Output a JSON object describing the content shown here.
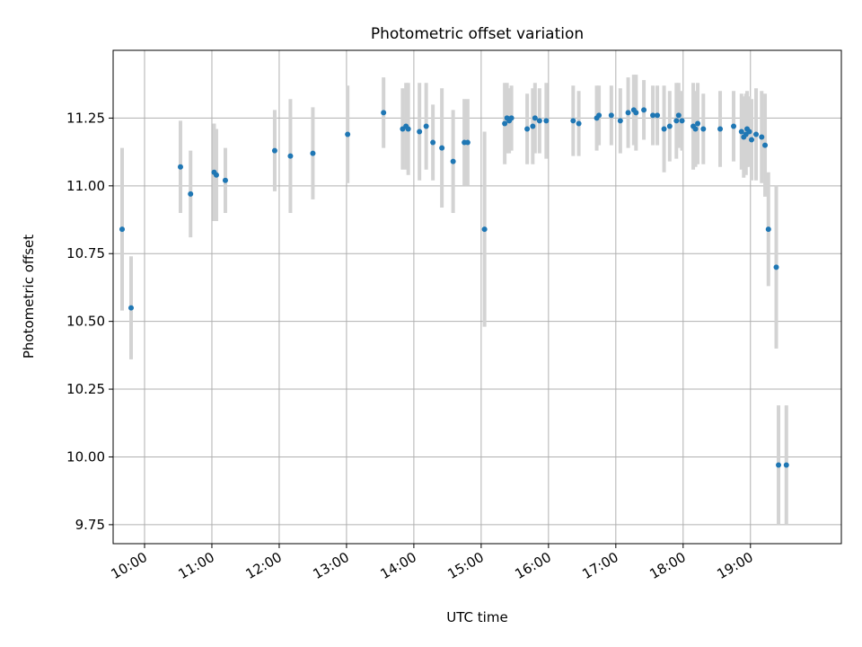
{
  "chart_data": {
    "type": "scatter",
    "title": "Photometric offset variation",
    "xlabel": "UTC time",
    "ylabel": "Photometric offset",
    "x_unit": "UTC time (HH:MM)",
    "xlim": [
      "09:32",
      "20:21"
    ],
    "ylim": [
      9.68,
      11.5
    ],
    "x_ticks": [
      "10:00",
      "11:00",
      "12:00",
      "13:00",
      "14:00",
      "15:00",
      "16:00",
      "17:00",
      "18:00",
      "19:00"
    ],
    "y_ticks": [
      "9.75",
      "10.00",
      "10.25",
      "10.50",
      "10.75",
      "11.00",
      "11.25"
    ],
    "grid": true,
    "colors": {
      "point": "#1f77b4",
      "errorbar": "#d3d3d3",
      "grid": "#b0b0b0"
    },
    "series": [
      {
        "x": [
          "09:40",
          "09:48",
          "10:32",
          "10:41",
          "11:02",
          "11:04",
          "11:12",
          "11:56",
          "12:10",
          "12:30",
          "13:01",
          "13:33",
          "13:50",
          "13:53",
          "13:55",
          "14:05",
          "14:11",
          "14:17",
          "14:25",
          "14:35",
          "14:45",
          "14:48",
          "15:03",
          "15:21",
          "15:23",
          "15:25",
          "15:27",
          "15:41",
          "15:46",
          "15:48",
          "15:52",
          "15:58",
          "16:22",
          "16:27",
          "16:43",
          "16:45",
          "16:56",
          "17:04",
          "17:11",
          "17:16",
          "17:18",
          "17:25",
          "17:33",
          "17:37",
          "17:43",
          "17:48",
          "17:54",
          "17:56",
          "17:59",
          "18:09",
          "18:11",
          "18:13",
          "18:18",
          "18:33",
          "18:45",
          "18:52",
          "18:54",
          "18:56",
          "18:57",
          "18:59",
          "19:01",
          "19:05",
          "19:10",
          "19:13",
          "19:16",
          "19:23",
          "19:25",
          "19:32"
        ],
        "y": [
          10.84,
          10.55,
          11.07,
          10.97,
          11.05,
          11.04,
          11.02,
          11.13,
          11.11,
          11.12,
          11.19,
          11.27,
          11.21,
          11.22,
          11.21,
          11.2,
          11.22,
          11.16,
          11.14,
          11.09,
          11.16,
          11.16,
          10.84,
          11.23,
          11.25,
          11.24,
          11.25,
          11.21,
          11.22,
          11.25,
          11.24,
          11.24,
          11.24,
          11.23,
          11.25,
          11.26,
          11.26,
          11.24,
          11.27,
          11.28,
          11.27,
          11.28,
          11.26,
          11.26,
          11.21,
          11.22,
          11.24,
          11.26,
          11.24,
          11.22,
          11.21,
          11.23,
          11.21,
          11.21,
          11.22,
          11.2,
          11.18,
          11.19,
          11.21,
          11.2,
          11.17,
          11.19,
          11.18,
          11.15,
          10.84,
          10.7,
          9.97,
          9.97
        ],
        "y_err": [
          0.3,
          0.19,
          0.17,
          0.16,
          0.18,
          0.17,
          0.12,
          0.15,
          0.21,
          0.17,
          0.18,
          0.13,
          0.15,
          0.16,
          0.17,
          0.18,
          0.16,
          0.14,
          0.22,
          0.19,
          0.16,
          0.16,
          0.36,
          0.15,
          0.13,
          0.12,
          0.12,
          0.13,
          0.14,
          0.13,
          0.12,
          0.14,
          0.13,
          0.12,
          0.12,
          0.11,
          0.11,
          0.12,
          0.13,
          0.13,
          0.14,
          0.11,
          0.11,
          0.11,
          0.16,
          0.13,
          0.14,
          0.12,
          0.11,
          0.16,
          0.14,
          0.15,
          0.13,
          0.14,
          0.13,
          0.14,
          0.15,
          0.15,
          0.14,
          0.13,
          0.15,
          0.17,
          0.17,
          0.19,
          0.21,
          0.3,
          0.22,
          0.22
        ]
      }
    ]
  }
}
